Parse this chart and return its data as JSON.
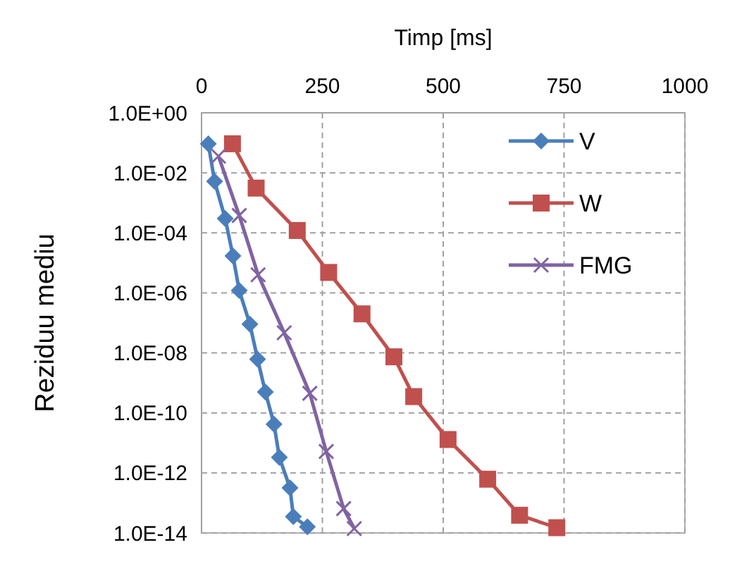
{
  "chart_data": {
    "type": "line",
    "xlabel": "Timp [ms]",
    "ylabel": "Reziduu mediu",
    "log": "y",
    "grid": true,
    "legend": "top right",
    "xlim": [
      0,
      1000
    ],
    "xticks": [
      0,
      250,
      500,
      750,
      1000
    ],
    "ylim": [
      1e-14,
      1
    ],
    "yticks": [
      {
        "value": 1,
        "label": "1.0E+00"
      },
      {
        "value": 0.01,
        "label": "1.0E-02"
      },
      {
        "value": 0.0001,
        "label": "1.0E-04"
      },
      {
        "value": 1e-06,
        "label": "1.0E-06"
      },
      {
        "value": 1e-08,
        "label": "1.0E-08"
      },
      {
        "value": 1e-10,
        "label": "1.0E-10"
      },
      {
        "value": 1e-12,
        "label": "1.0E-12"
      },
      {
        "value": 1e-14,
        "label": "1.0E-14"
      }
    ],
    "series": [
      {
        "name": "V",
        "color": "#4a7ebb",
        "marker": "diamond",
        "x": [
          14,
          27,
          49,
          65,
          78,
          100,
          116,
          132,
          150,
          161,
          183,
          190,
          219
        ],
        "values": [
          0.093,
          0.0052,
          0.0003,
          1.7e-05,
          1.2e-06,
          9.1e-08,
          6.2e-09,
          5e-10,
          4.2e-11,
          3.3e-12,
          3.2e-13,
          3.5e-14,
          1.6e-14
        ]
      },
      {
        "name": "W",
        "color": "#c0504d",
        "marker": "square",
        "x": [
          64,
          113,
          198,
          263,
          332,
          398,
          439,
          510,
          592,
          658,
          735
        ],
        "values": [
          0.093,
          0.0031,
          0.00012,
          4.8e-06,
          2e-07,
          7.4e-09,
          3.5e-10,
          1.3e-11,
          6.2e-13,
          3.9e-14,
          1.5e-14
        ]
      },
      {
        "name": "FMG",
        "color": "#8064a2",
        "marker": "cross",
        "x": [
          35,
          78,
          117,
          171,
          224,
          258,
          294,
          316
        ],
        "values": [
          0.036,
          0.00038,
          4e-06,
          4.7e-08,
          4.5e-10,
          5.2e-12,
          6.5e-14,
          1.4e-14
        ]
      }
    ]
  }
}
